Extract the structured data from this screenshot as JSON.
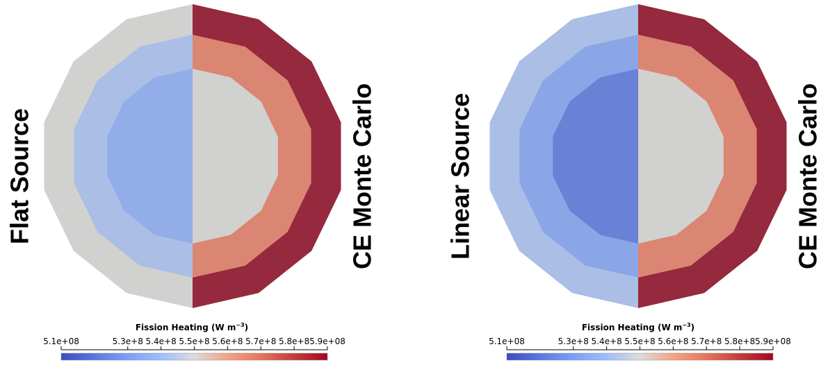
{
  "chart_data": [
    {
      "type": "heatmap",
      "left_label": "Flat Source",
      "right_label": "CE Monte Carlo",
      "colorbar": {
        "title": "Fission Heating (W m",
        "title_sup": "−3",
        "title_close": ")",
        "range": [
          510000000.0,
          590000000.0
        ],
        "ticks": [
          510000000.0,
          530000000.0,
          540000000.0,
          550000000.0,
          560000000.0,
          570000000.0,
          580000000.0,
          590000000.0
        ],
        "tick_labels": [
          "5.1e+08",
          "5.3e+8",
          "5.4e+8",
          "5.5e+8",
          "5.6e+8",
          "5.7e+8",
          "5.8e+8",
          "5.9e+08"
        ],
        "colormap": "Cool to Warm"
      },
      "rings": [
        "inner",
        "middle",
        "outer"
      ],
      "left_values": [
        535000000.0,
        542000000.0,
        550000000.0
      ],
      "right_values": [
        550000000.0,
        568000000.0,
        590000000.0
      ]
    },
    {
      "type": "heatmap",
      "left_label": "Linear Source",
      "right_label": "CE Monte Carlo",
      "colorbar": {
        "title": "Fission Heating (W m",
        "title_sup": "−3",
        "title_close": ")",
        "range": [
          510000000.0,
          590000000.0
        ],
        "ticks": [
          510000000.0,
          530000000.0,
          540000000.0,
          550000000.0,
          560000000.0,
          570000000.0,
          580000000.0,
          590000000.0
        ],
        "tick_labels": [
          "5.1e+08",
          "5.3e+8",
          "5.4e+8",
          "5.5e+8",
          "5.6e+8",
          "5.7e+8",
          "5.8e+8",
          "5.9e+08"
        ],
        "colormap": "Cool to Warm"
      },
      "rings": [
        "inner",
        "middle",
        "outer"
      ],
      "left_values": [
        520000000.0,
        532000000.0,
        542000000.0
      ],
      "right_values": [
        550000000.0,
        568000000.0,
        590000000.0
      ]
    }
  ]
}
